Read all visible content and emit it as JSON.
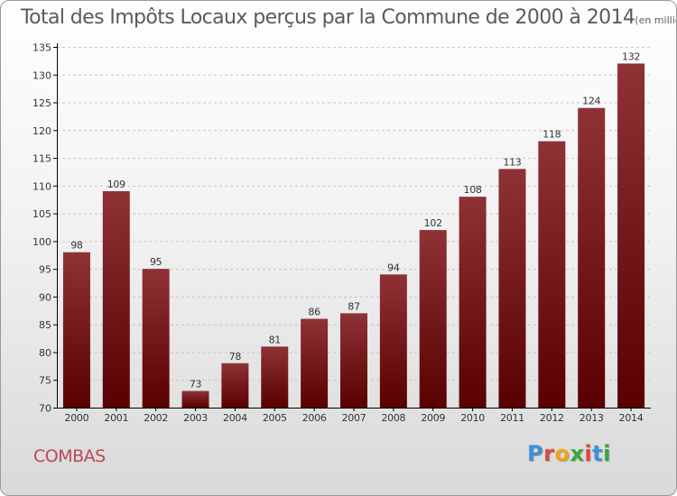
{
  "title": "Total des Impôts Locaux perçus par la Commune de 2000 à 2014",
  "subtitle": "(en milliers d'€)",
  "commune": "COMBAS",
  "logo": {
    "text": "Proxiti",
    "letters": [
      "P",
      "r",
      "o",
      "x",
      "i",
      "t",
      "i"
    ]
  },
  "colors": {
    "bar_dark": "#5a0000",
    "bar_light": "#8e3236",
    "axis": "#000000",
    "grid": "#c8c8c8",
    "text": "#333333",
    "commune": "#b84a55",
    "logo": [
      "#3f8fd8",
      "#e3453c",
      "#f0a21a",
      "#3aa63a",
      "#e3453c",
      "#3f8fd8",
      "#3aa63a"
    ]
  },
  "chart_data": {
    "type": "bar",
    "title": "Total des Impôts Locaux perçus par la Commune de 2000 à 2014",
    "ylabel": "en milliers d'€",
    "xlabel": "",
    "categories": [
      "2000",
      "2001",
      "2002",
      "2003",
      "2004",
      "2005",
      "2006",
      "2007",
      "2008",
      "2009",
      "2010",
      "2011",
      "2012",
      "2013",
      "2014"
    ],
    "values": [
      98,
      109,
      95,
      73,
      78,
      81,
      86,
      87,
      94,
      102,
      108,
      113,
      118,
      124,
      132
    ],
    "ylim": [
      70,
      135
    ],
    "yticks": [
      70,
      75,
      80,
      85,
      90,
      95,
      100,
      105,
      110,
      115,
      120,
      125,
      130,
      135
    ],
    "grid": true,
    "data_labels": true
  }
}
